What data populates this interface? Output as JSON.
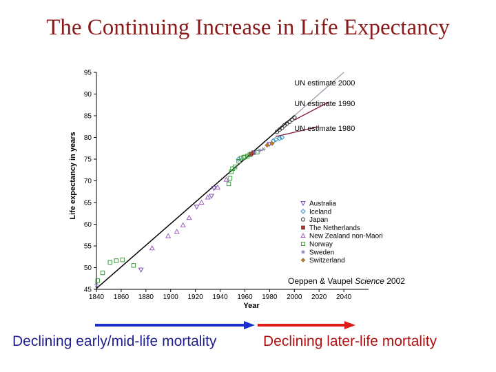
{
  "slide": {
    "title": "The Continuing Increase in Life Expectancy",
    "left_caption": "Declining early/mid-life mortality",
    "right_caption": "Declining later-life mortality",
    "left_arrow_color": "#1a2fcc",
    "right_arrow_color": "#e01a1a",
    "title_color": "#8b1a1a"
  },
  "chart_data": {
    "type": "scatter",
    "title": "",
    "xlabel": "Year",
    "ylabel": "Life expectancy in years",
    "xlim": [
      1840,
      2060
    ],
    "ylim": [
      45,
      95
    ],
    "xticks": [
      1840,
      1860,
      1880,
      1900,
      1920,
      1940,
      1960,
      1980,
      2000,
      2020,
      2040
    ],
    "yticks": [
      45,
      50,
      55,
      60,
      65,
      70,
      75,
      80,
      85,
      90,
      95
    ],
    "trend_line": {
      "x": [
        1840,
        2000
      ],
      "y": [
        45.2,
        85
      ]
    },
    "series": [
      {
        "name": "Australia",
        "marker": "triangle-down",
        "color": "#7a4fb0",
        "x": [
          1876,
          1921,
          1933,
          1935,
          1980
        ],
        "y": [
          49.5,
          64,
          66.5,
          68.3,
          78.5
        ]
      },
      {
        "name": "Iceland",
        "marker": "diamond",
        "color": "#2a8fc0",
        "x": [
          1955,
          1983,
          1985,
          1988,
          1990
        ],
        "y": [
          75,
          79.2,
          79.5,
          79.8,
          80
        ]
      },
      {
        "name": "Japan",
        "marker": "circle",
        "color": "#333333",
        "x": [
          1986,
          1988,
          1990,
          1992,
          1994,
          1996,
          1998,
          2000
        ],
        "y": [
          81.3,
          81.8,
          82.2,
          82.8,
          83.2,
          83.6,
          84.1,
          84.6
        ]
      },
      {
        "name": "The Netherlands",
        "marker": "square-filled",
        "color": "#b03030",
        "x": [
          1965,
          1967
        ],
        "y": [
          76.2,
          76.5
        ]
      },
      {
        "name": "New Zealand non-Maori",
        "marker": "triangle-up",
        "color": "#9a5fbf",
        "x": [
          1885,
          1898,
          1905,
          1910,
          1915,
          1925,
          1930,
          1938,
          1945
        ],
        "y": [
          54.5,
          57.3,
          58.3,
          59.8,
          61.5,
          65,
          66.2,
          68.5,
          70.3
        ]
      },
      {
        "name": "Norway",
        "marker": "square",
        "color": "#3a9a3a",
        "x": [
          1841,
          1845,
          1851,
          1856,
          1861,
          1870,
          1947,
          1948,
          1949,
          1950,
          1952,
          1955,
          1957,
          1959,
          1960,
          1962,
          1964,
          1970
        ],
        "y": [
          47,
          48.8,
          51.2,
          51.6,
          51.8,
          50.5,
          69.3,
          70.6,
          72.1,
          72.8,
          73.2,
          74.5,
          75.2,
          75.4,
          75.5,
          75.7,
          76,
          76.6
        ]
      },
      {
        "name": "Sweden",
        "marker": "asterisk",
        "color": "#7a7ab0",
        "x": [
          1840,
          1968,
          1972,
          1975
        ],
        "y": [
          46,
          76.6,
          77,
          77.3
        ]
      },
      {
        "name": "Switzerland",
        "marker": "diamond-filled",
        "color": "#c87a20",
        "x": [
          1978,
          1982
        ],
        "y": [
          78.2,
          78.6
        ]
      }
    ],
    "projections": [
      {
        "label": "UN estimate 2000",
        "color": "#a0a0b0",
        "x": [
          2000,
          2040
        ],
        "y": [
          85,
          95
        ],
        "label_x": 2000,
        "label_y": 92
      },
      {
        "label": "UN estimate 1990",
        "color": "#8a2040",
        "x": [
          2000,
          2028
        ],
        "y": [
          84,
          88.2
        ],
        "label_x": 2000,
        "label_y": 87.2
      },
      {
        "label": "UN estimate 1980",
        "color": "#8a2040",
        "x": [
          1985,
          2020
        ],
        "y": [
          80.2,
          82.5
        ],
        "label_x": 2000,
        "label_y": 81.5
      }
    ],
    "annotation": {
      "prefix": "Oeppen & Vaupel ",
      "journal": "Science",
      "year": " 2002"
    }
  }
}
